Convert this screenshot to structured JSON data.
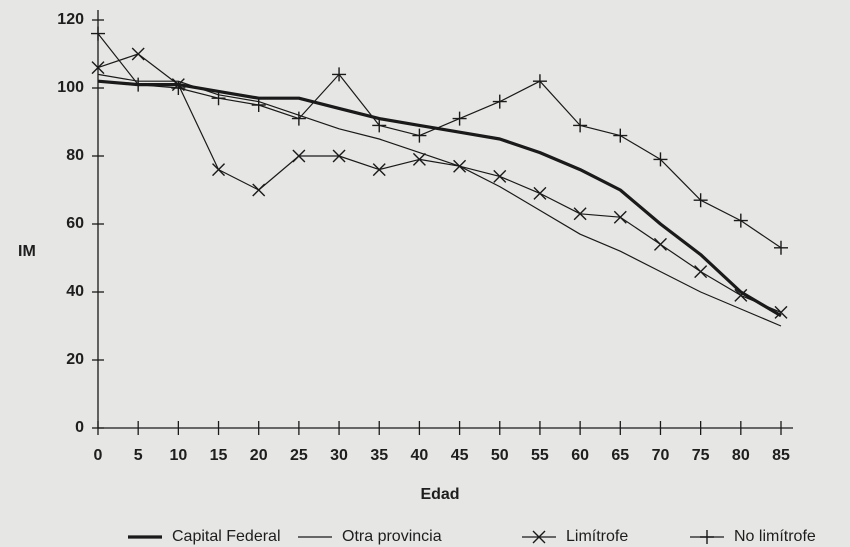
{
  "chart_data": {
    "type": "line",
    "xlabel": "Edad",
    "ylabel": "IM",
    "x": [
      0,
      5,
      10,
      15,
      20,
      25,
      30,
      35,
      40,
      45,
      50,
      55,
      60,
      65,
      70,
      75,
      80,
      85
    ],
    "xlim": [
      0,
      85
    ],
    "xticks": [
      0,
      5,
      10,
      15,
      20,
      25,
      30,
      35,
      40,
      45,
      50,
      55,
      60,
      65,
      70,
      75,
      80,
      85
    ],
    "ylim": [
      0,
      120
    ],
    "yticks": [
      0,
      20,
      40,
      60,
      80,
      100,
      120
    ],
    "series": [
      {
        "name": "Capital Federal",
        "color": "#1a1a1a",
        "marker": "none",
        "line_width": 3.2,
        "values": [
          102,
          101,
          101,
          99,
          97,
          97,
          94,
          91,
          89,
          87,
          85,
          81,
          76,
          70,
          60,
          51,
          40,
          33
        ]
      },
      {
        "name": "Otra provincia",
        "color": "#1a1a1a",
        "marker": "none",
        "line_width": 1.2,
        "values": [
          104,
          102,
          102,
          98,
          96,
          92,
          88,
          85,
          81,
          77,
          71,
          64,
          57,
          52,
          46,
          40,
          35,
          30
        ]
      },
      {
        "name": "Limítrofe",
        "color": "#1a1a1a",
        "marker": "x",
        "line_width": 1.2,
        "values": [
          106,
          110,
          101,
          76,
          70,
          80,
          80,
          76,
          79,
          77,
          74,
          69,
          63,
          62,
          54,
          46,
          39,
          34
        ]
      },
      {
        "name": "No limítrofe",
        "color": "#1a1a1a",
        "marker": "+",
        "line_width": 1.2,
        "values": [
          116,
          101,
          100,
          97,
          95,
          91,
          104,
          89,
          86,
          91,
          96,
          102,
          89,
          86,
          79,
          67,
          61,
          53
        ]
      }
    ]
  }
}
